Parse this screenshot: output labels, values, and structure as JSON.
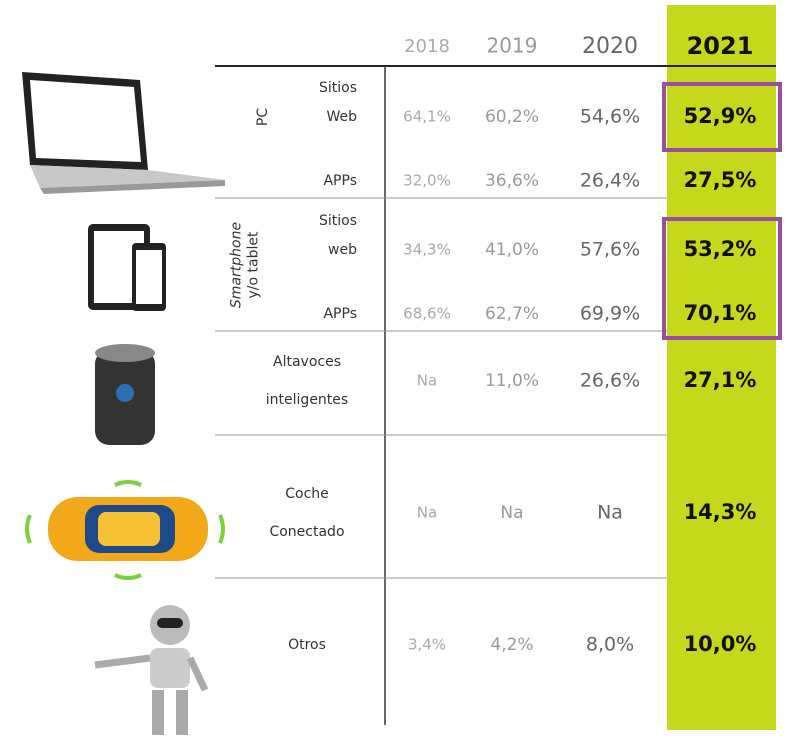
{
  "table": {
    "columns": [
      "2018",
      "2019",
      "2020",
      "2021"
    ],
    "groups": [
      {
        "label": [
          "PC"
        ],
        "rows": [
          {
            "label": [
              "Sitios",
              "Web"
            ],
            "values": [
              "64,1%",
              "60,2%",
              "54,6%",
              "52,9%"
            ]
          },
          {
            "label": [
              "APPs"
            ],
            "values": [
              "32,0%",
              "36,6%",
              "26,4%",
              "27,5%"
            ]
          }
        ]
      },
      {
        "label": [
          "Smartphone",
          "y/o tablet"
        ],
        "rows": [
          {
            "label": [
              "Sitios",
              "web"
            ],
            "values": [
              "34,3%",
              "41,0%",
              "57,6%",
              "53,2%"
            ]
          },
          {
            "label": [
              "APPs"
            ],
            "values": [
              "68,6%",
              "62,7%",
              "69,9%",
              "70,1%"
            ]
          }
        ]
      },
      {
        "rows": [
          {
            "label": [
              "Altavoces",
              "inteligentes"
            ],
            "values": [
              "Na",
              "11,0%",
              "26,6%",
              "27,1%"
            ]
          }
        ]
      },
      {
        "rows": [
          {
            "label": [
              "Coche",
              "Conectado"
            ],
            "values": [
              "Na",
              "Na",
              "Na",
              "14,3%"
            ]
          }
        ]
      },
      {
        "rows": [
          {
            "label": [
              "Otros"
            ],
            "values": [
              "3,4%",
              "4,2%",
              "8,0%",
              "10,0%"
            ]
          }
        ]
      }
    ]
  }
}
